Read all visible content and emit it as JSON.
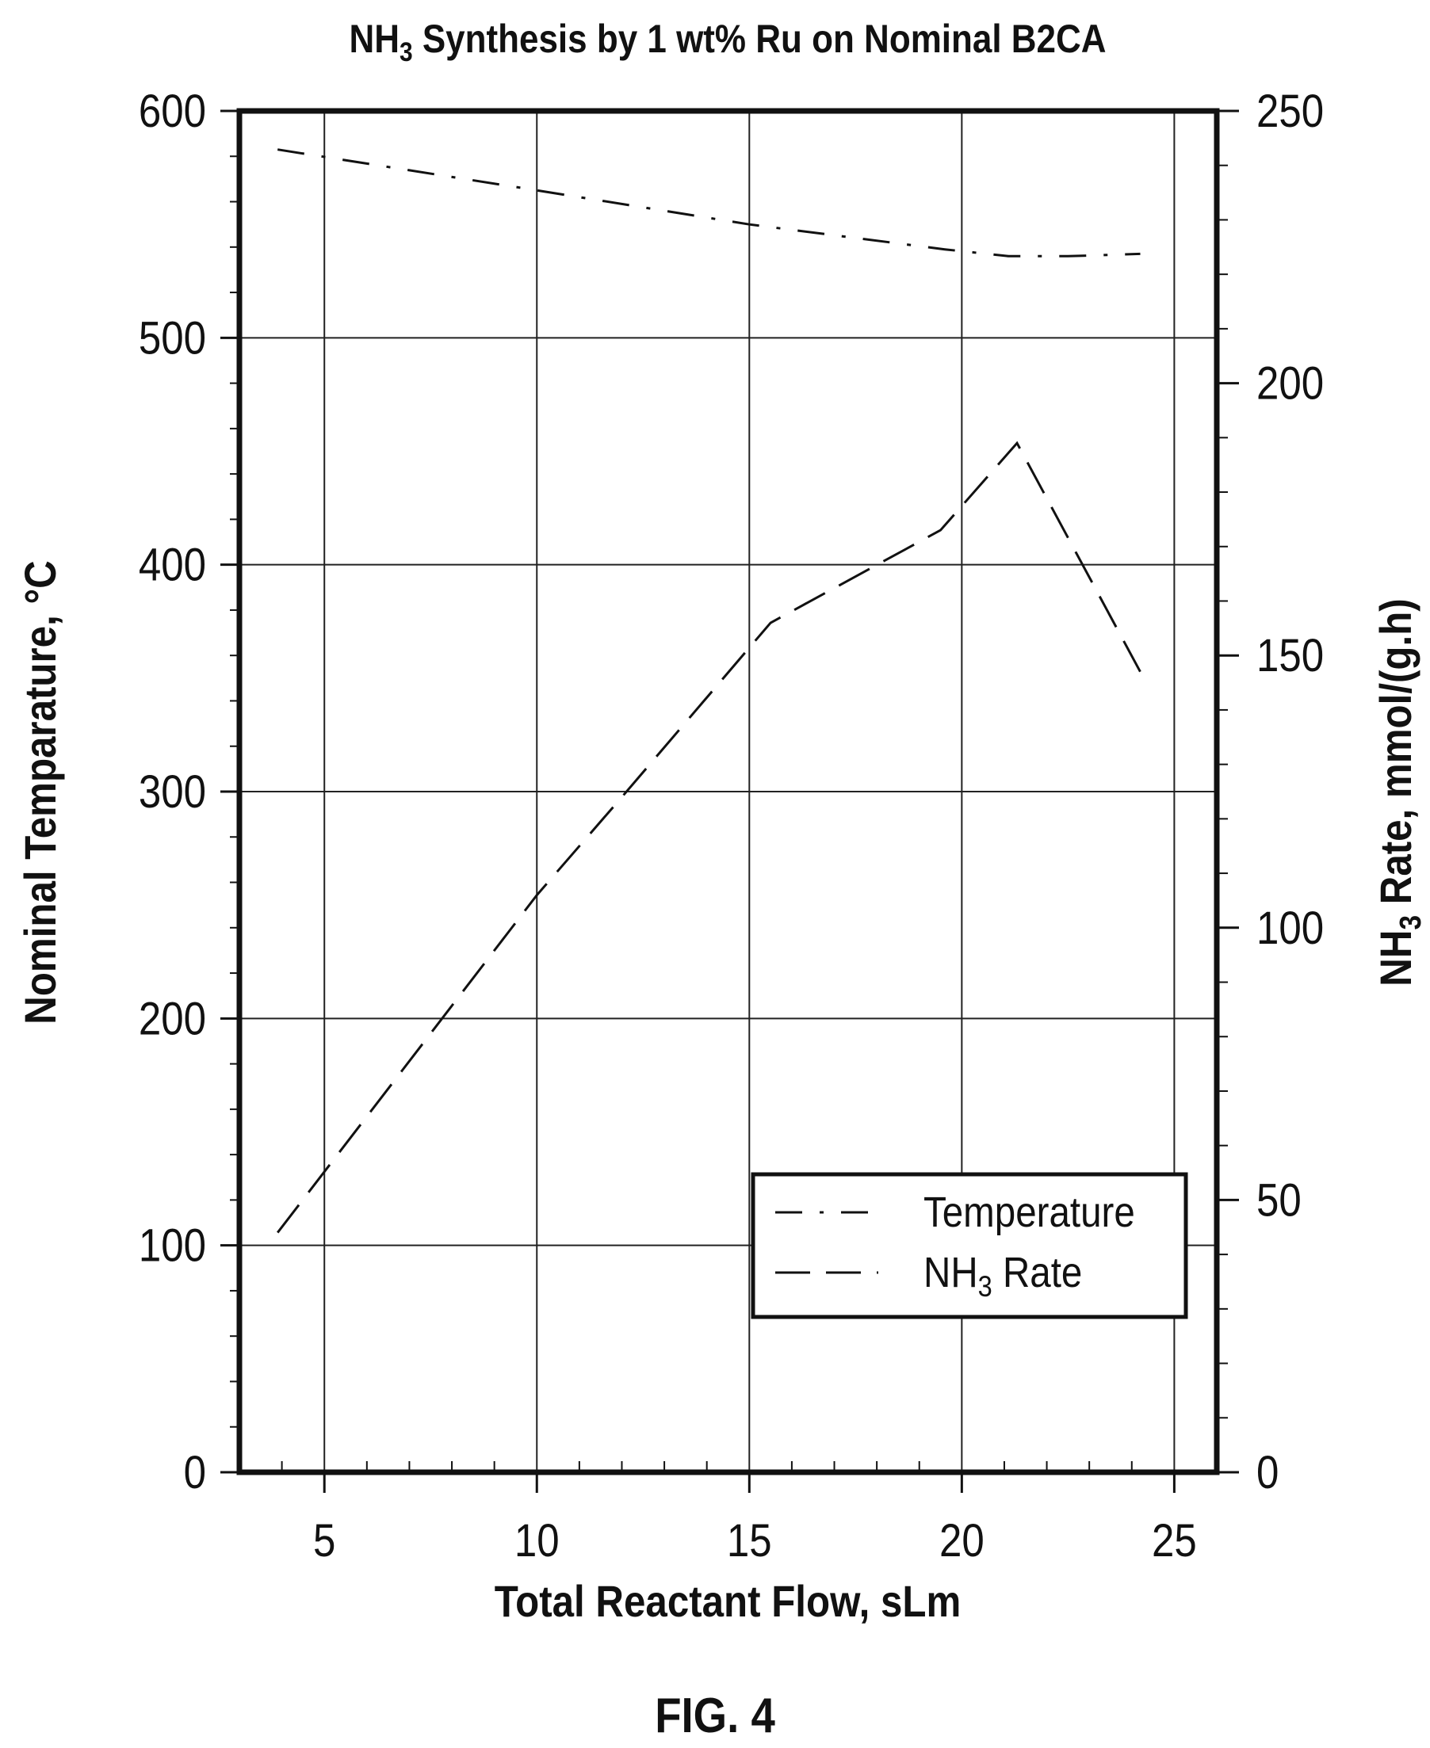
{
  "chart_data": {
    "type": "line",
    "title": "NH3 Synthesis by 1 wt% Ru on Nominal B2CA",
    "title_parts": {
      "pre": "NH",
      "sub": "3",
      "post": " Synthesis by 1 wt% Ru on Nominal B2CA"
    },
    "xlabel": "Total Reactant Flow, sLm",
    "ylabel_left": "Nominal Temparature, °C",
    "ylabel_right": "NH3 Rate, mmol/(g.h)",
    "ylabel_right_parts": {
      "pre": "NH",
      "sub": "3",
      "post": " Rate, mmol/(g.h)"
    },
    "xlim": [
      3,
      26
    ],
    "x_ticks": [
      5,
      10,
      15,
      20,
      25
    ],
    "ylim_left": [
      0,
      600
    ],
    "y_ticks_left": [
      0,
      100,
      200,
      300,
      400,
      500,
      600
    ],
    "ylim_right": [
      0,
      250
    ],
    "y_ticks_right": [
      0,
      50,
      100,
      150,
      200,
      250
    ],
    "grid": true,
    "legend_position": "lower-right",
    "series": [
      {
        "name": "Temperature",
        "axis": "left",
        "dash": "dash-dot",
        "x": [
          3.9,
          10.0,
          15.0,
          19.6,
          21.1,
          22.5,
          24.2
        ],
        "y": [
          583,
          565,
          550,
          539,
          536,
          536,
          537
        ]
      },
      {
        "name": "NH3 Rate",
        "name_parts": {
          "pre": "NH",
          "sub": "3",
          "post": " Rate"
        },
        "axis": "right",
        "dash": "dashed",
        "x": [
          3.9,
          10.0,
          12.0,
          15.5,
          19.5,
          21.3,
          24.2
        ],
        "y": [
          44,
          106,
          124,
          156,
          173,
          189,
          147
        ]
      }
    ]
  },
  "figure_label": "FIG. 4"
}
